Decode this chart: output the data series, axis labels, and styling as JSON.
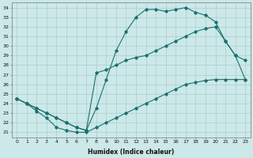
{
  "xlabel": "Humidex (Indice chaleur)",
  "bg_color": "#cce8e8",
  "grid_color": "#aacece",
  "line_color": "#1a7070",
  "xlim": [
    -0.5,
    23.5
  ],
  "ylim": [
    20.5,
    34.5
  ],
  "xticks": [
    0,
    1,
    2,
    3,
    4,
    5,
    6,
    7,
    8,
    9,
    10,
    11,
    12,
    13,
    14,
    15,
    16,
    17,
    18,
    19,
    20,
    21,
    22,
    23
  ],
  "yticks": [
    21,
    22,
    23,
    24,
    25,
    26,
    27,
    28,
    29,
    30,
    31,
    32,
    33,
    34
  ],
  "line1_x": [
    0,
    1,
    2,
    3,
    4,
    5,
    6,
    7,
    8,
    9,
    10,
    11,
    12,
    13,
    14,
    15,
    16,
    17,
    18,
    19,
    20,
    21,
    22,
    23
  ],
  "line1_y": [
    24.5,
    24.0,
    23.5,
    23.0,
    22.5,
    22.0,
    21.5,
    21.2,
    23.5,
    26.5,
    29.5,
    31.5,
    33.0,
    33.8,
    33.8,
    33.6,
    33.8,
    34.0,
    33.5,
    33.2,
    32.5,
    30.5,
    29.0,
    28.5
  ],
  "line2_x": [
    0,
    1,
    2,
    3,
    4,
    5,
    6,
    7,
    8,
    9,
    10,
    11,
    12,
    13,
    14,
    15,
    16,
    17,
    18,
    19,
    20,
    21,
    22,
    23
  ],
  "line2_y": [
    24.5,
    24.0,
    23.5,
    23.0,
    22.5,
    22.0,
    21.5,
    21.2,
    27.2,
    27.5,
    28.0,
    28.5,
    28.8,
    29.0,
    29.5,
    30.0,
    30.5,
    31.0,
    31.5,
    31.8,
    32.0,
    30.5,
    29.0,
    26.5
  ],
  "line3_x": [
    0,
    1,
    2,
    3,
    4,
    5,
    6,
    7,
    8,
    9,
    10,
    11,
    12,
    13,
    14,
    15,
    16,
    17,
    18,
    19,
    20,
    21,
    22,
    23
  ],
  "line3_y": [
    24.5,
    24.0,
    23.2,
    22.5,
    21.5,
    21.2,
    21.0,
    21.0,
    21.5,
    22.0,
    22.5,
    23.0,
    23.5,
    24.0,
    24.5,
    25.0,
    25.5,
    26.0,
    26.2,
    26.4,
    26.5,
    26.5,
    26.5,
    26.5
  ]
}
